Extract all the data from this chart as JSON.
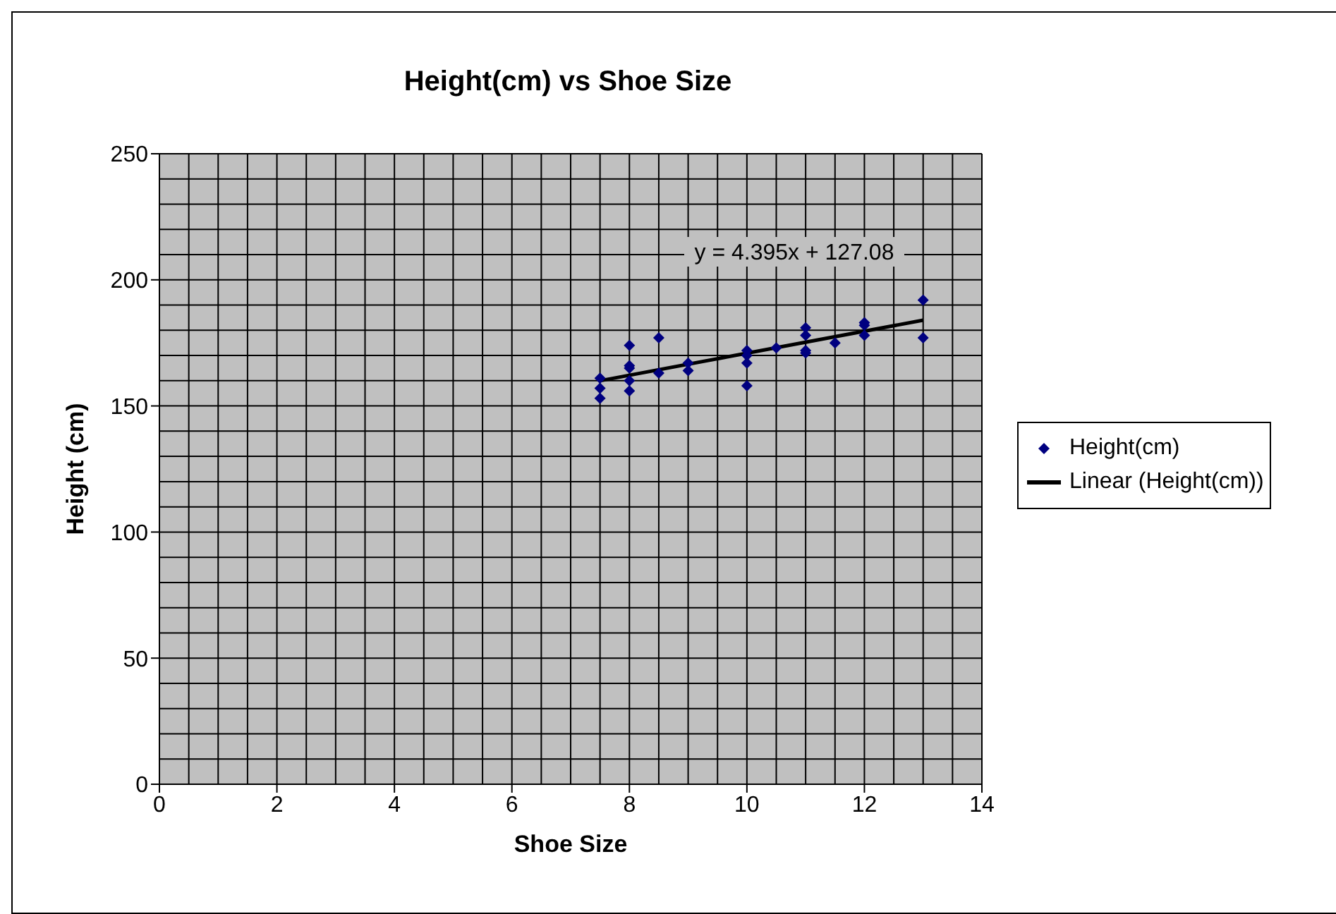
{
  "chart_data": {
    "type": "scatter",
    "title": "Height(cm) vs Shoe Size",
    "xlabel": "Shoe Size",
    "ylabel": "Height (cm)",
    "annotations": [
      "y = 4.395x + 127.08"
    ],
    "xlim": [
      0,
      14
    ],
    "xticks": [
      0,
      2,
      4,
      6,
      8,
      10,
      12,
      14
    ],
    "ylim": [
      0,
      250
    ],
    "yticks": [
      0,
      50,
      100,
      150,
      200,
      250
    ],
    "grid": true,
    "legend": "right",
    "marker": "diamond",
    "series": [
      {
        "name": "Height(cm)",
        "color": "#000080",
        "x": [
          7.5,
          7.5,
          7.5,
          8,
          8,
          8,
          8,
          8,
          8.5,
          8.5,
          9,
          9,
          10,
          10,
          10,
          10,
          10.5,
          11,
          11,
          11,
          11,
          11.5,
          12,
          12,
          12,
          13,
          13
        ],
        "values": [
          161,
          157,
          153,
          174,
          166,
          165,
          160,
          156,
          177,
          163,
          167,
          164,
          172,
          170,
          167,
          158,
          173,
          181,
          178,
          172,
          171,
          175,
          183,
          182,
          178,
          192,
          177
        ]
      },
      {
        "name": "Linear (Height(cm))",
        "type": "line",
        "color": "#000000",
        "marker": "none",
        "x": [
          7.5,
          13
        ],
        "values": [
          160,
          184
        ]
      }
    ]
  }
}
